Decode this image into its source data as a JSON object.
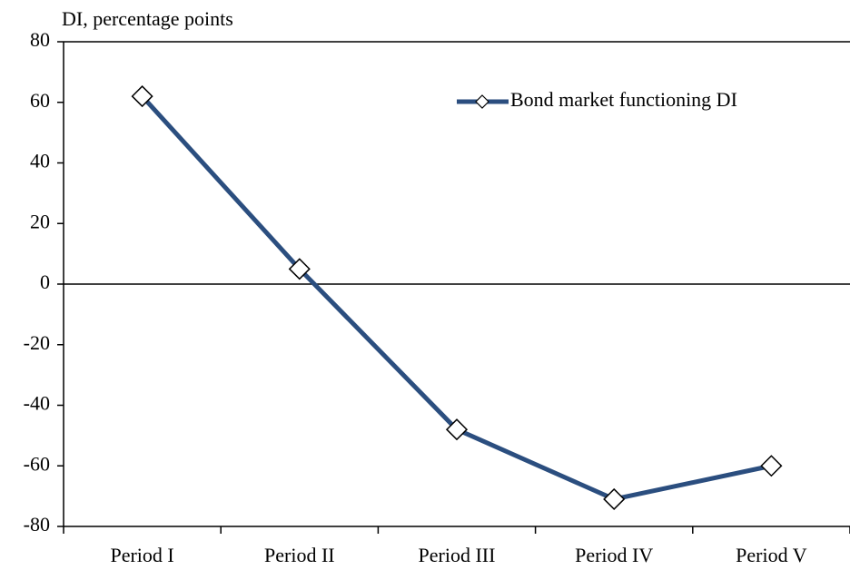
{
  "chart_data": {
    "type": "line",
    "y_axis_label": "DI, percentage points",
    "categories": [
      "Period I",
      "Period II",
      "Period III",
      "Period IV",
      "Period V"
    ],
    "series": [
      {
        "name": "Bond market functioning DI",
        "color": "#2b4e7f",
        "values": [
          62,
          5,
          -48,
          -71,
          -60
        ]
      }
    ],
    "ylim": [
      -80,
      80
    ],
    "yticks": [
      -80,
      -60,
      -40,
      -20,
      0,
      20,
      40,
      60,
      80
    ],
    "legend": "upper right"
  }
}
